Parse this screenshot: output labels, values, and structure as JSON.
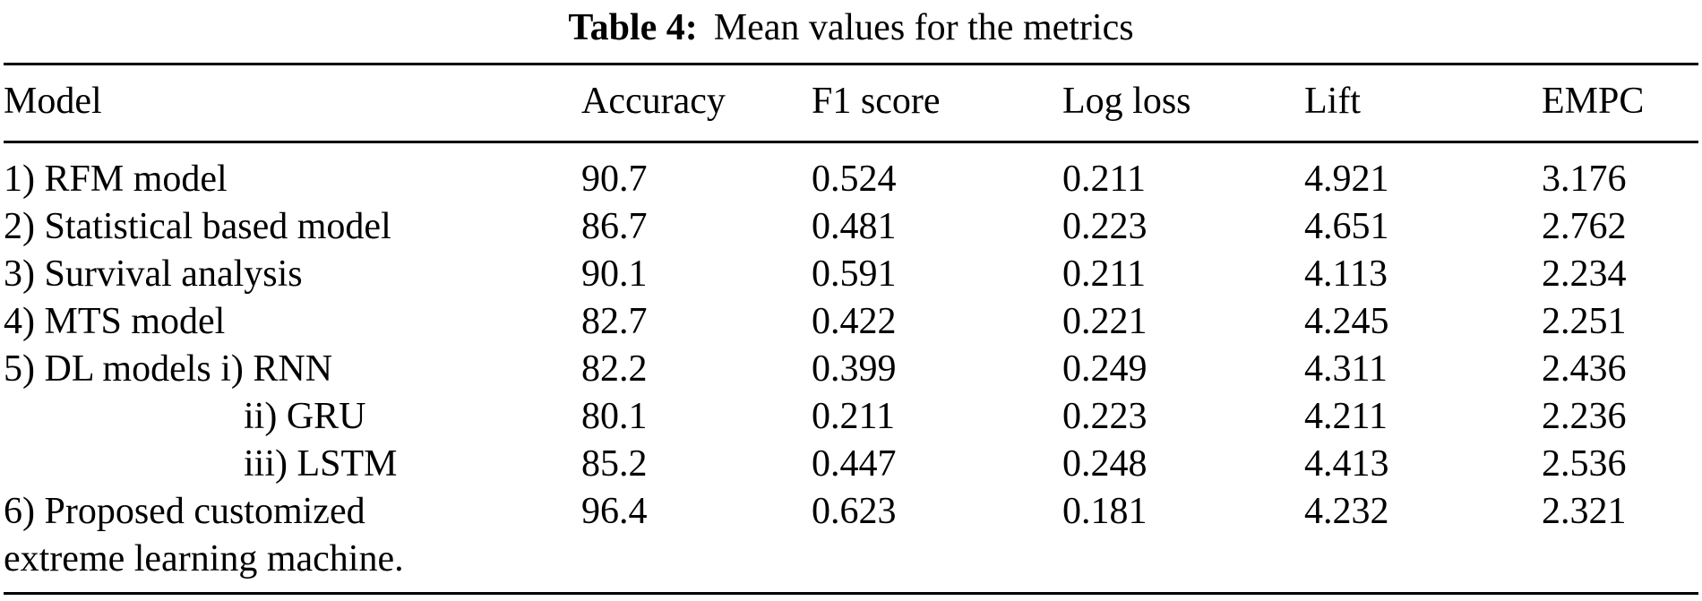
{
  "caption": {
    "label": "Table 4:",
    "text": "Mean values for the metrics"
  },
  "table": {
    "headers": {
      "model": "Model",
      "accuracy": "Accuracy",
      "f1": "F1 score",
      "logloss": "Log loss",
      "lift": "Lift",
      "empc": "EMPC"
    },
    "rows": [
      {
        "model": "1) RFM model",
        "accuracy": "90.7",
        "f1": "0.524",
        "logloss": "0.211",
        "lift": "4.921",
        "empc": "3.176"
      },
      {
        "model": "2) Statistical based model",
        "accuracy": "86.7",
        "f1": "0.481",
        "logloss": "0.223",
        "lift": "4.651",
        "empc": "2.762"
      },
      {
        "model": "3) Survival analysis",
        "accuracy": "90.1",
        "f1": "0.591",
        "logloss": "0.211",
        "lift": "4.113",
        "empc": "2.234"
      },
      {
        "model": "4) MTS model",
        "accuracy": "82.7",
        "f1": "0.422",
        "logloss": "0.221",
        "lift": "4.245",
        "empc": "2.251"
      },
      {
        "model": "5) DL models i) RNN",
        "accuracy": "82.2",
        "f1": "0.399",
        "logloss": "0.249",
        "lift": "4.311",
        "empc": "2.436"
      },
      {
        "model": "ii) GRU",
        "accuracy": "80.1",
        "f1": "0.211",
        "logloss": "0.223",
        "lift": "4.211",
        "empc": "2.236"
      },
      {
        "model": "iii) LSTM",
        "accuracy": "85.2",
        "f1": "0.447",
        "logloss": "0.248",
        "lift": "4.413",
        "empc": "2.536"
      },
      {
        "model": "6) Proposed customized",
        "accuracy": "96.4",
        "f1": "0.623",
        "logloss": "0.181",
        "lift": "4.232",
        "empc": "2.321"
      },
      {
        "model": "extreme learning machine.",
        "accuracy": "",
        "f1": "",
        "logloss": "",
        "lift": "",
        "empc": ""
      }
    ]
  }
}
